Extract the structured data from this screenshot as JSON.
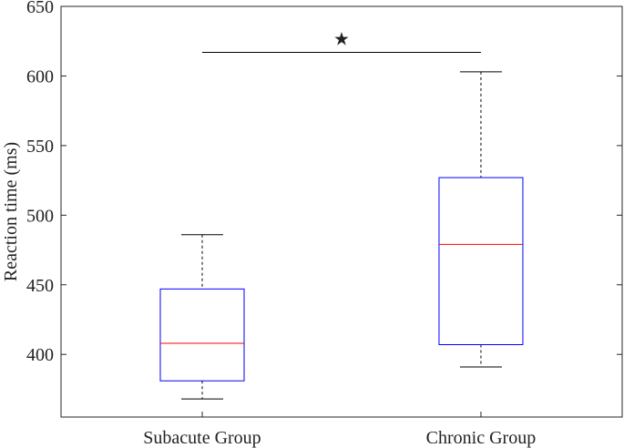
{
  "chart_data": {
    "type": "box",
    "ylabel": "Reaction time (ms)",
    "xlabel": "",
    "ylim": [
      355,
      650
    ],
    "yticks": [
      400,
      450,
      500,
      550,
      600,
      650
    ],
    "grid": false,
    "categories": [
      "Subacute Group",
      "Chronic Group"
    ],
    "boxes": [
      {
        "category": "Subacute Group",
        "whisker_low": 368,
        "q1": 381,
        "median": 408,
        "q3": 447,
        "whisker_high": 486
      },
      {
        "category": "Chronic Group",
        "whisker_low": 391,
        "q1": 407,
        "median": 479,
        "q3": 527,
        "whisker_high": 603
      }
    ],
    "significance": {
      "from": "Subacute Group",
      "to": "Chronic Group",
      "y": 617,
      "marker": "★"
    },
    "colors": {
      "box": "#0000ff",
      "median": "#ff0000",
      "whisker": "#000000",
      "axis": "#262626"
    }
  }
}
